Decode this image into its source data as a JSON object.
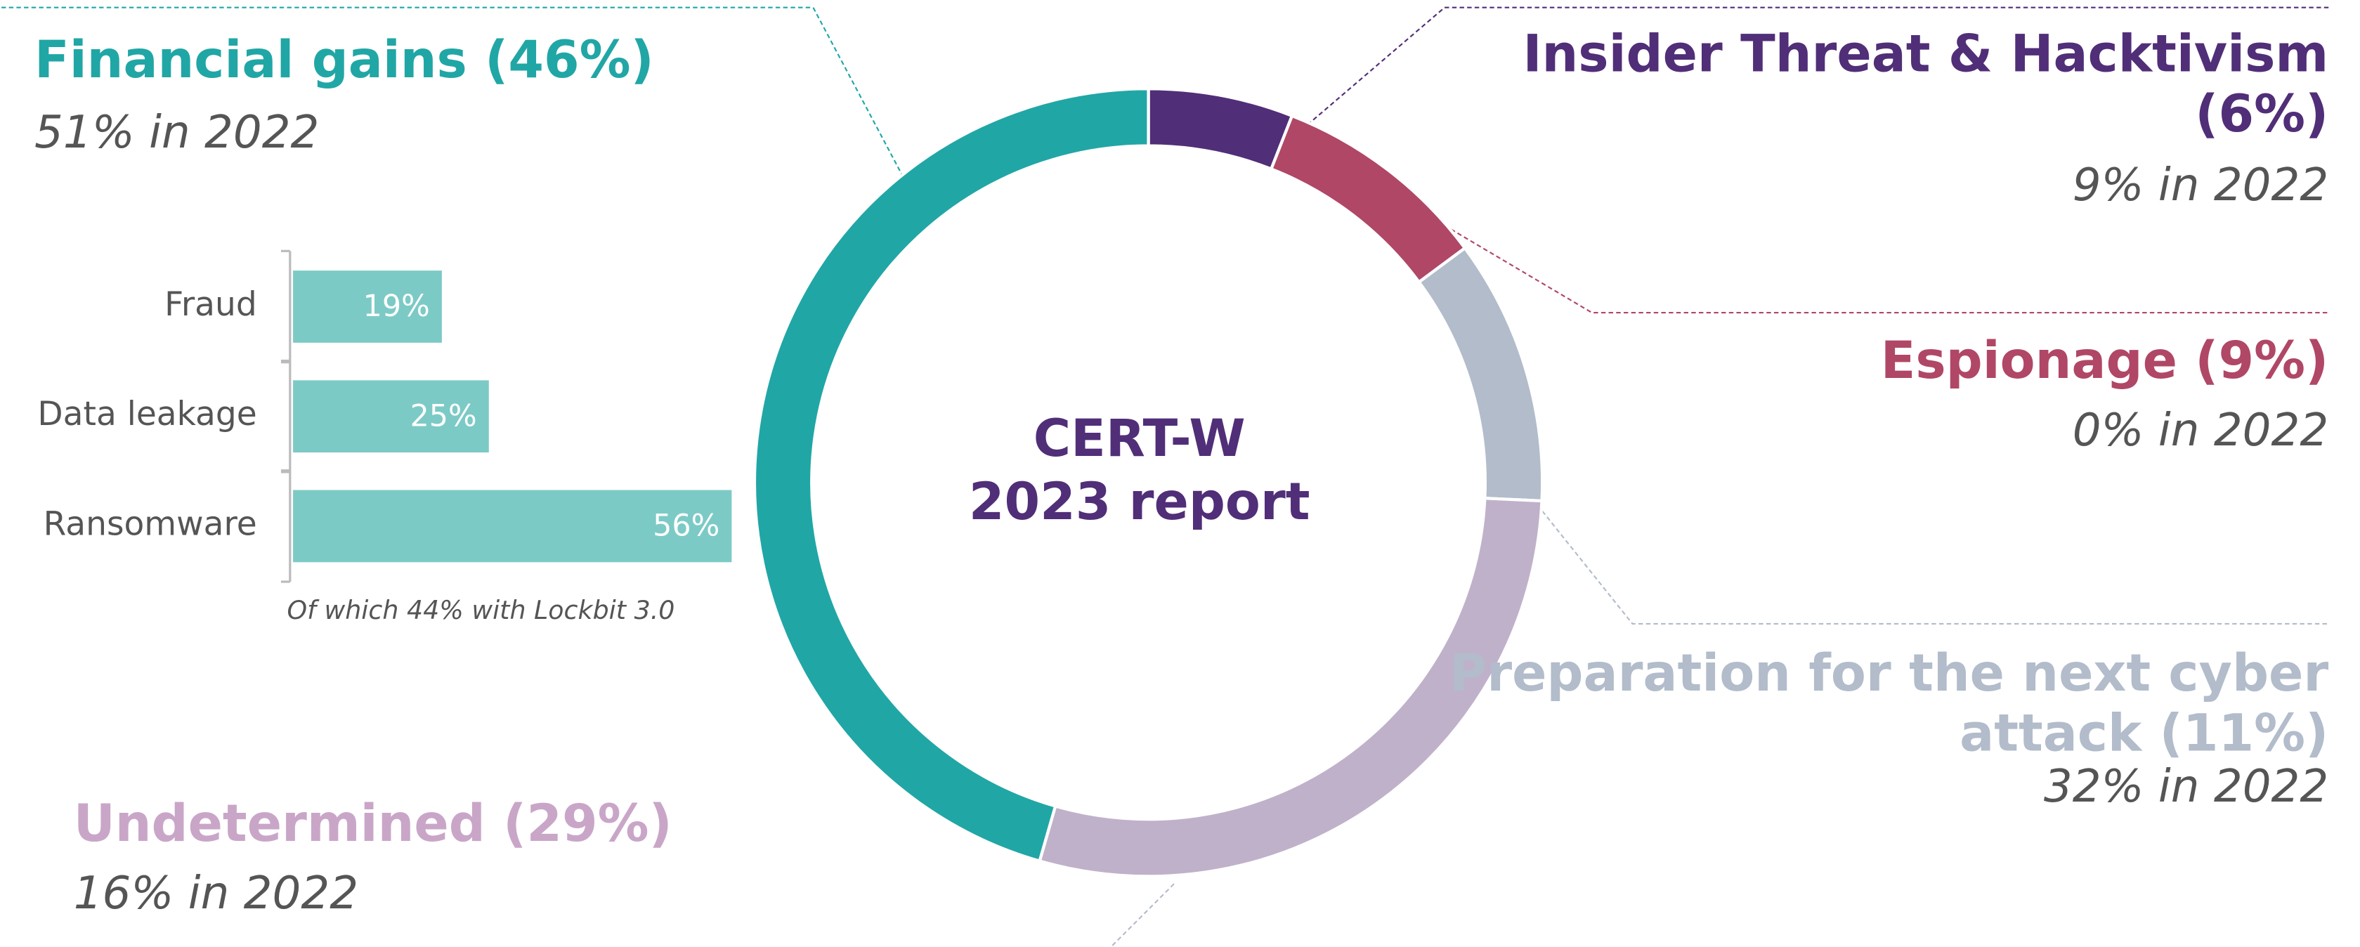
{
  "chart_data": [
    {
      "type": "donut",
      "center_text": [
        "CERT-W",
        "2023 report"
      ],
      "categories": [
        [
          "Insider Threat & Hacktivism",
          "(6%)"
        ],
        [
          "Espionage (9%)"
        ],
        [
          "Preparation for the next cyber",
          "attack (11%)"
        ],
        [
          "Undetermined (29%)"
        ],
        [
          "Financial gains (46%)"
        ]
      ],
      "values": [
        6,
        9,
        11,
        29,
        46
      ],
      "notes": [
        "9% in 2022",
        "0% in 2022",
        "32% in 2022",
        "16% in 2022",
        "51% in 2022"
      ],
      "colors": [
        "#512e78",
        "#b04766",
        "#b2bcca",
        "#c0b1ca",
        "#21a6a6"
      ],
      "label_colors": [
        "#512e78",
        "#b04766",
        "#b2bcca",
        "#c9a6c8",
        "#21a6a6"
      ]
    },
    {
      "type": "hbar",
      "categories": [
        "Fraud",
        "Data leakage",
        "Ransomware"
      ],
      "values": [
        19,
        25,
        56
      ],
      "value_labels": [
        "19%",
        "25%",
        "56%"
      ],
      "color": "#7ccac6",
      "xlim": [
        0,
        100
      ],
      "annotation": "Of which 44% with Lockbit 3.0"
    }
  ]
}
